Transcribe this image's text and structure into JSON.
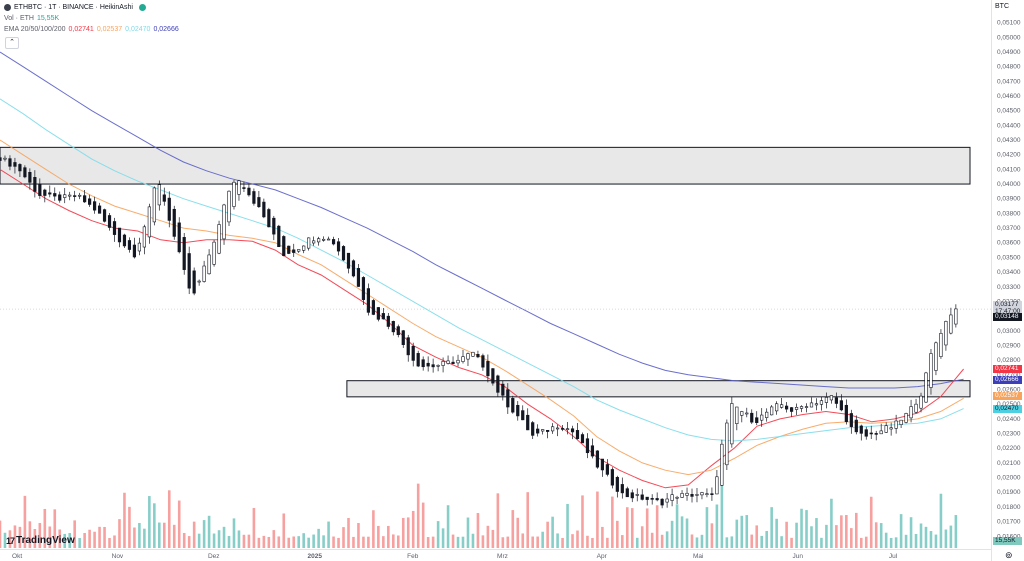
{
  "legend": {
    "symbol": "ETHBTC · 1T · BINANCE · HeikinAshi",
    "vol_label": "Vol · ETH",
    "vol_value": "15,55K",
    "ema_label": "EMA 20/50/100/200",
    "ema_values": [
      "0,02741",
      "0,02537",
      "0,02470",
      "0,02666"
    ]
  },
  "colors": {
    "up": "#26a69a",
    "down": "#131722",
    "wick": "#131722",
    "vol_up": "#26a69a",
    "vol_down": "#ef5350",
    "ema20": "#f23645",
    "ema50": "#f7a35c",
    "ema100": "#7ddbea",
    "ema200": "#5b5fc7",
    "zone_fill": "#e8e8e8",
    "zone_stroke": "#131722"
  },
  "icons": {
    "collapse": "chevron-up-icon",
    "settings": "settings-icon",
    "logo": "tradingview-logo"
  },
  "collapse_glyph": "⌃",
  "settings_glyph": "⊚",
  "logo_mark": "17",
  "logo_text": "TradingView",
  "axis": {
    "currency": "BTC",
    "y_ticks": [
      "0,05100",
      "0,05000",
      "0,04900",
      "0,04800",
      "0,04700",
      "0,04600",
      "0,04500",
      "0,04400",
      "0,04300",
      "0,04200",
      "0,04100",
      "0,04000",
      "0,03900",
      "0,03800",
      "0,03700",
      "0,03600",
      "0,03500",
      "0,03400",
      "0,03300",
      "0,03200",
      "0,03100",
      "0,03000",
      "0,02900",
      "0,02800",
      "0,02700",
      "0,02600",
      "0,02500",
      "0,02400",
      "0,02300",
      "0,02200",
      "0,02100",
      "0,02000",
      "0,01900",
      "0,01800",
      "0,01700",
      "0,01600"
    ],
    "x_ticks": [
      "Okt",
      "Nov",
      "Dez",
      "2025",
      "Feb",
      "Mrz",
      "Apr",
      "Mai",
      "Jun",
      "Jul"
    ]
  },
  "price_tags": [
    {
      "text": "0,03177",
      "value": 0.03177,
      "bg": "#d1d4dc",
      "fg": "#131722"
    },
    {
      "text": "17:47:00",
      "value": 0.0313,
      "bg": "#d1d4dc",
      "fg": "#131722"
    },
    {
      "text": "0,03148",
      "value": 0.03092,
      "bg": "#131722",
      "fg": "#ffffff"
    },
    {
      "text": "0,02741",
      "value": 0.02741,
      "bg": "#f23645",
      "fg": "#ffffff"
    },
    {
      "text": "0,02666",
      "value": 0.02666,
      "bg": "#3d3fb8",
      "fg": "#ffffff"
    },
    {
      "text": "0,02537",
      "value": 0.02557,
      "bg": "#f7a35c",
      "fg": "#ffffff"
    },
    {
      "text": "0,02470",
      "value": 0.0247,
      "bg": "#4dd0e1",
      "fg": "#131722"
    }
  ],
  "volume_tag": {
    "text": "15,55K",
    "bg": "#7fc9bf",
    "fg": "#131722"
  },
  "chart_data": {
    "type": "candlestick",
    "style": "HeikinAshi",
    "ylim": [
      0.0152,
      0.0522
    ],
    "zones": [
      {
        "low": 0.04,
        "high": 0.0425,
        "from": "2024-09-26",
        "to": "2025-07-25"
      },
      {
        "low": 0.0255,
        "high": 0.0266,
        "from": "2025-01-12",
        "to": "2025-07-25"
      }
    ],
    "candles": [
      [
        "2024-09-26",
        0.0418
      ],
      [
        "2024-10-02",
        0.041
      ],
      [
        "2024-10-08",
        0.0393
      ],
      [
        "2024-10-14",
        0.039
      ],
      [
        "2024-10-20",
        0.0392
      ],
      [
        "2024-10-26",
        0.0382
      ],
      [
        "2024-10-30",
        0.037
      ],
      [
        "2024-11-03",
        0.036
      ],
      [
        "2024-11-07",
        0.0352
      ],
      [
        "2024-11-11",
        0.0378
      ],
      [
        "2024-11-14",
        0.0405
      ],
      [
        "2024-11-17",
        0.0382
      ],
      [
        "2024-11-20",
        0.0358
      ],
      [
        "2024-11-23",
        0.0335
      ],
      [
        "2024-11-25",
        0.0322
      ],
      [
        "2024-11-29",
        0.0345
      ],
      [
        "2024-12-03",
        0.037
      ],
      [
        "2024-12-06",
        0.0395
      ],
      [
        "2024-12-09",
        0.0405
      ],
      [
        "2024-12-12",
        0.0395
      ],
      [
        "2024-12-16",
        0.0382
      ],
      [
        "2024-12-19",
        0.037
      ],
      [
        "2024-12-23",
        0.0352
      ],
      [
        "2024-12-27",
        0.0355
      ],
      [
        "2024-12-31",
        0.0362
      ],
      [
        "2025-01-04",
        0.0365
      ],
      [
        "2025-01-08",
        0.036
      ],
      [
        "2025-01-12",
        0.0345
      ],
      [
        "2025-01-16",
        0.033
      ],
      [
        "2025-01-19",
        0.0312
      ],
      [
        "2025-01-23",
        0.0308
      ],
      [
        "2025-01-27",
        0.03
      ],
      [
        "2025-02-01",
        0.0282
      ],
      [
        "2025-02-04",
        0.0276
      ],
      [
        "2025-02-08",
        0.0276
      ],
      [
        "2025-02-12",
        0.0278
      ],
      [
        "2025-02-16",
        0.028
      ],
      [
        "2025-02-20",
        0.0285
      ],
      [
        "2025-02-24",
        0.0275
      ],
      [
        "2025-02-27",
        0.0262
      ],
      [
        "2025-03-03",
        0.025
      ],
      [
        "2025-03-07",
        0.024
      ],
      [
        "2025-03-11",
        0.0228
      ],
      [
        "2025-03-15",
        0.0232
      ],
      [
        "2025-03-19",
        0.0236
      ],
      [
        "2025-03-23",
        0.0232
      ],
      [
        "2025-03-27",
        0.022
      ],
      [
        "2025-03-31",
        0.0208
      ],
      [
        "2025-04-04",
        0.0198
      ],
      [
        "2025-04-08",
        0.0188
      ],
      [
        "2025-04-12",
        0.0187
      ],
      [
        "2025-04-16",
        0.0185
      ],
      [
        "2025-04-20",
        0.0183
      ],
      [
        "2025-04-24",
        0.0188
      ],
      [
        "2025-04-28",
        0.0188
      ],
      [
        "2025-05-02",
        0.0189
      ],
      [
        "2025-05-06",
        0.0187
      ],
      [
        "2025-05-09",
        0.0225
      ],
      [
        "2025-05-12",
        0.025
      ],
      [
        "2025-05-15",
        0.0245
      ],
      [
        "2025-05-19",
        0.0238
      ],
      [
        "2025-05-23",
        0.0245
      ],
      [
        "2025-05-27",
        0.025
      ],
      [
        "2025-05-31",
        0.0245
      ],
      [
        "2025-06-04",
        0.025
      ],
      [
        "2025-06-08",
        0.0252
      ],
      [
        "2025-06-12",
        0.0255
      ],
      [
        "2025-06-16",
        0.0242
      ],
      [
        "2025-06-19",
        0.023
      ],
      [
        "2025-06-23",
        0.0228
      ],
      [
        "2025-06-27",
        0.0232
      ],
      [
        "2025-07-01",
        0.0235
      ],
      [
        "2025-07-04",
        0.024
      ],
      [
        "2025-07-07",
        0.0248
      ],
      [
        "2025-07-10",
        0.0258
      ],
      [
        "2025-07-13",
        0.0285
      ],
      [
        "2025-07-16",
        0.03
      ],
      [
        "2025-07-19",
        0.0312
      ],
      [
        "2025-07-22",
        0.0317
      ]
    ],
    "ema": {
      "ema20": [
        0.041,
        0.04,
        0.039,
        0.0382,
        0.0375,
        0.037,
        0.0368,
        0.0362,
        0.036,
        0.0362,
        0.0362,
        0.0361,
        0.0355,
        0.0345,
        0.0338,
        0.0328,
        0.0318,
        0.0305,
        0.029,
        0.0282,
        0.0275,
        0.027,
        0.0262,
        0.025,
        0.024,
        0.0228,
        0.0214,
        0.0205,
        0.0198,
        0.0193,
        0.0195,
        0.0208,
        0.022,
        0.0235,
        0.024,
        0.0243,
        0.0245,
        0.0243,
        0.0238,
        0.024,
        0.0244,
        0.0255,
        0.0274
      ],
      "ema50": [
        0.043,
        0.042,
        0.041,
        0.04,
        0.0392,
        0.0385,
        0.038,
        0.0375,
        0.037,
        0.0368,
        0.0365,
        0.0363,
        0.036,
        0.0352,
        0.0345,
        0.0335,
        0.0325,
        0.0315,
        0.0305,
        0.0296,
        0.0289,
        0.0282,
        0.0273,
        0.0263,
        0.0253,
        0.0242,
        0.0228,
        0.0218,
        0.021,
        0.0205,
        0.0202,
        0.0205,
        0.0213,
        0.0222,
        0.0228,
        0.0233,
        0.0237,
        0.0238,
        0.0237,
        0.0238,
        0.024,
        0.0245,
        0.0254
      ],
      "ema100": [
        0.0458,
        0.0448,
        0.0437,
        0.0427,
        0.0417,
        0.0409,
        0.0402,
        0.0396,
        0.039,
        0.0385,
        0.038,
        0.0375,
        0.037,
        0.0363,
        0.0355,
        0.0347,
        0.0338,
        0.0329,
        0.032,
        0.0311,
        0.0302,
        0.0294,
        0.0286,
        0.0278,
        0.027,
        0.0262,
        0.0253,
        0.0246,
        0.024,
        0.0234,
        0.0229,
        0.0226,
        0.0225,
        0.0226,
        0.0228,
        0.023,
        0.0232,
        0.0234,
        0.0235,
        0.0236,
        0.0237,
        0.024,
        0.0247
      ],
      "ema200": [
        0.049,
        0.048,
        0.047,
        0.046,
        0.045,
        0.0441,
        0.0432,
        0.0423,
        0.0415,
        0.0409,
        0.0404,
        0.04,
        0.0396,
        0.039,
        0.0384,
        0.0377,
        0.037,
        0.0362,
        0.0354,
        0.0345,
        0.0337,
        0.0329,
        0.0321,
        0.0313,
        0.0305,
        0.0298,
        0.0291,
        0.0284,
        0.0278,
        0.0273,
        0.027,
        0.0268,
        0.0266,
        0.0265,
        0.0264,
        0.0263,
        0.0262,
        0.0261,
        0.0261,
        0.0261,
        0.0262,
        0.0264,
        0.0267
      ]
    }
  }
}
